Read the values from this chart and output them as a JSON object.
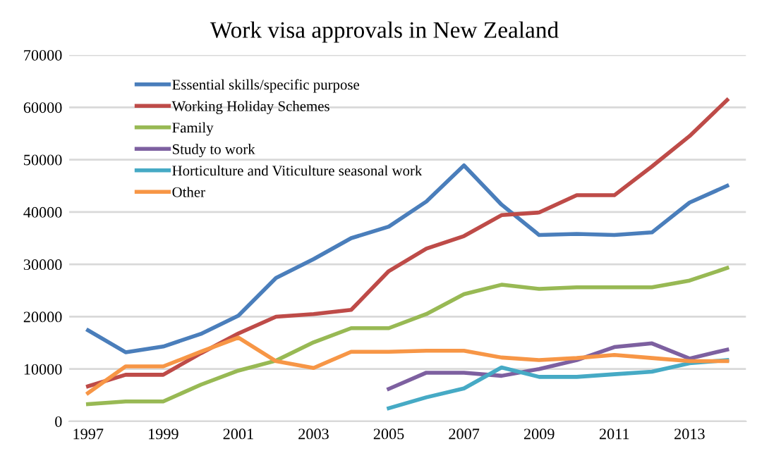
{
  "chart_data": {
    "type": "line",
    "title": "Work visa approvals in New Zealand",
    "x": [
      1997,
      1998,
      1999,
      2000,
      2001,
      2002,
      2003,
      2004,
      2005,
      2006,
      2007,
      2008,
      2009,
      2010,
      2011,
      2012,
      2013,
      2014
    ],
    "series": [
      {
        "name": "Essential skills/specific purpose",
        "color": "#4a7ebb",
        "values": [
          17400,
          13200,
          14300,
          16700,
          20200,
          27400,
          31000,
          35000,
          37200,
          42000,
          48900,
          41400,
          35600,
          35800,
          35600,
          36100,
          41800,
          45000
        ]
      },
      {
        "name": "Working Holiday Schemes",
        "color": "#be4b48",
        "values": [
          6700,
          8900,
          8900,
          13000,
          16800,
          20000,
          20500,
          21300,
          28700,
          33000,
          35400,
          39400,
          39900,
          43200,
          43200,
          48700,
          54500,
          61400
        ]
      },
      {
        "name": "Family",
        "color": "#98b954",
        "values": [
          3300,
          3800,
          3800,
          7000,
          9700,
          11600,
          15100,
          17800,
          17800,
          20500,
          24300,
          26100,
          25300,
          25600,
          25600,
          25600,
          26900,
          29300
        ]
      },
      {
        "name": "Study to work",
        "color": "#7d60a0",
        "x": [
          2005,
          2006,
          2007,
          2008,
          2009,
          2010,
          2011,
          2012,
          2013,
          2014
        ],
        "values": [
          6200,
          9300,
          9300,
          8700,
          10000,
          11700,
          14200,
          14900,
          12000,
          13700
        ]
      },
      {
        "name": "Horticulture and Viticulture seasonal work",
        "color": "#46aac5",
        "x": [
          2005,
          2006,
          2007,
          2008,
          2009,
          2010,
          2011,
          2012,
          2013,
          2014
        ],
        "values": [
          2500,
          4600,
          6300,
          10300,
          8500,
          8500,
          9000,
          9500,
          11100,
          11700
        ]
      },
      {
        "name": "Other",
        "color": "#f79646",
        "values": [
          5400,
          10500,
          10500,
          13300,
          16000,
          11500,
          10200,
          13300,
          13300,
          13500,
          13500,
          12200,
          11700,
          12100,
          12700,
          12100,
          11500,
          11500
        ]
      }
    ],
    "xlim": [
      1996.5,
      2014.5
    ],
    "xticks": [
      1997,
      1999,
      2001,
      2003,
      2005,
      2007,
      2009,
      2011,
      2013
    ],
    "ylim": [
      0,
      70000
    ],
    "yticks": [
      0,
      10000,
      20000,
      30000,
      40000,
      50000,
      60000,
      70000
    ],
    "grid": "y",
    "legend": "top left"
  }
}
